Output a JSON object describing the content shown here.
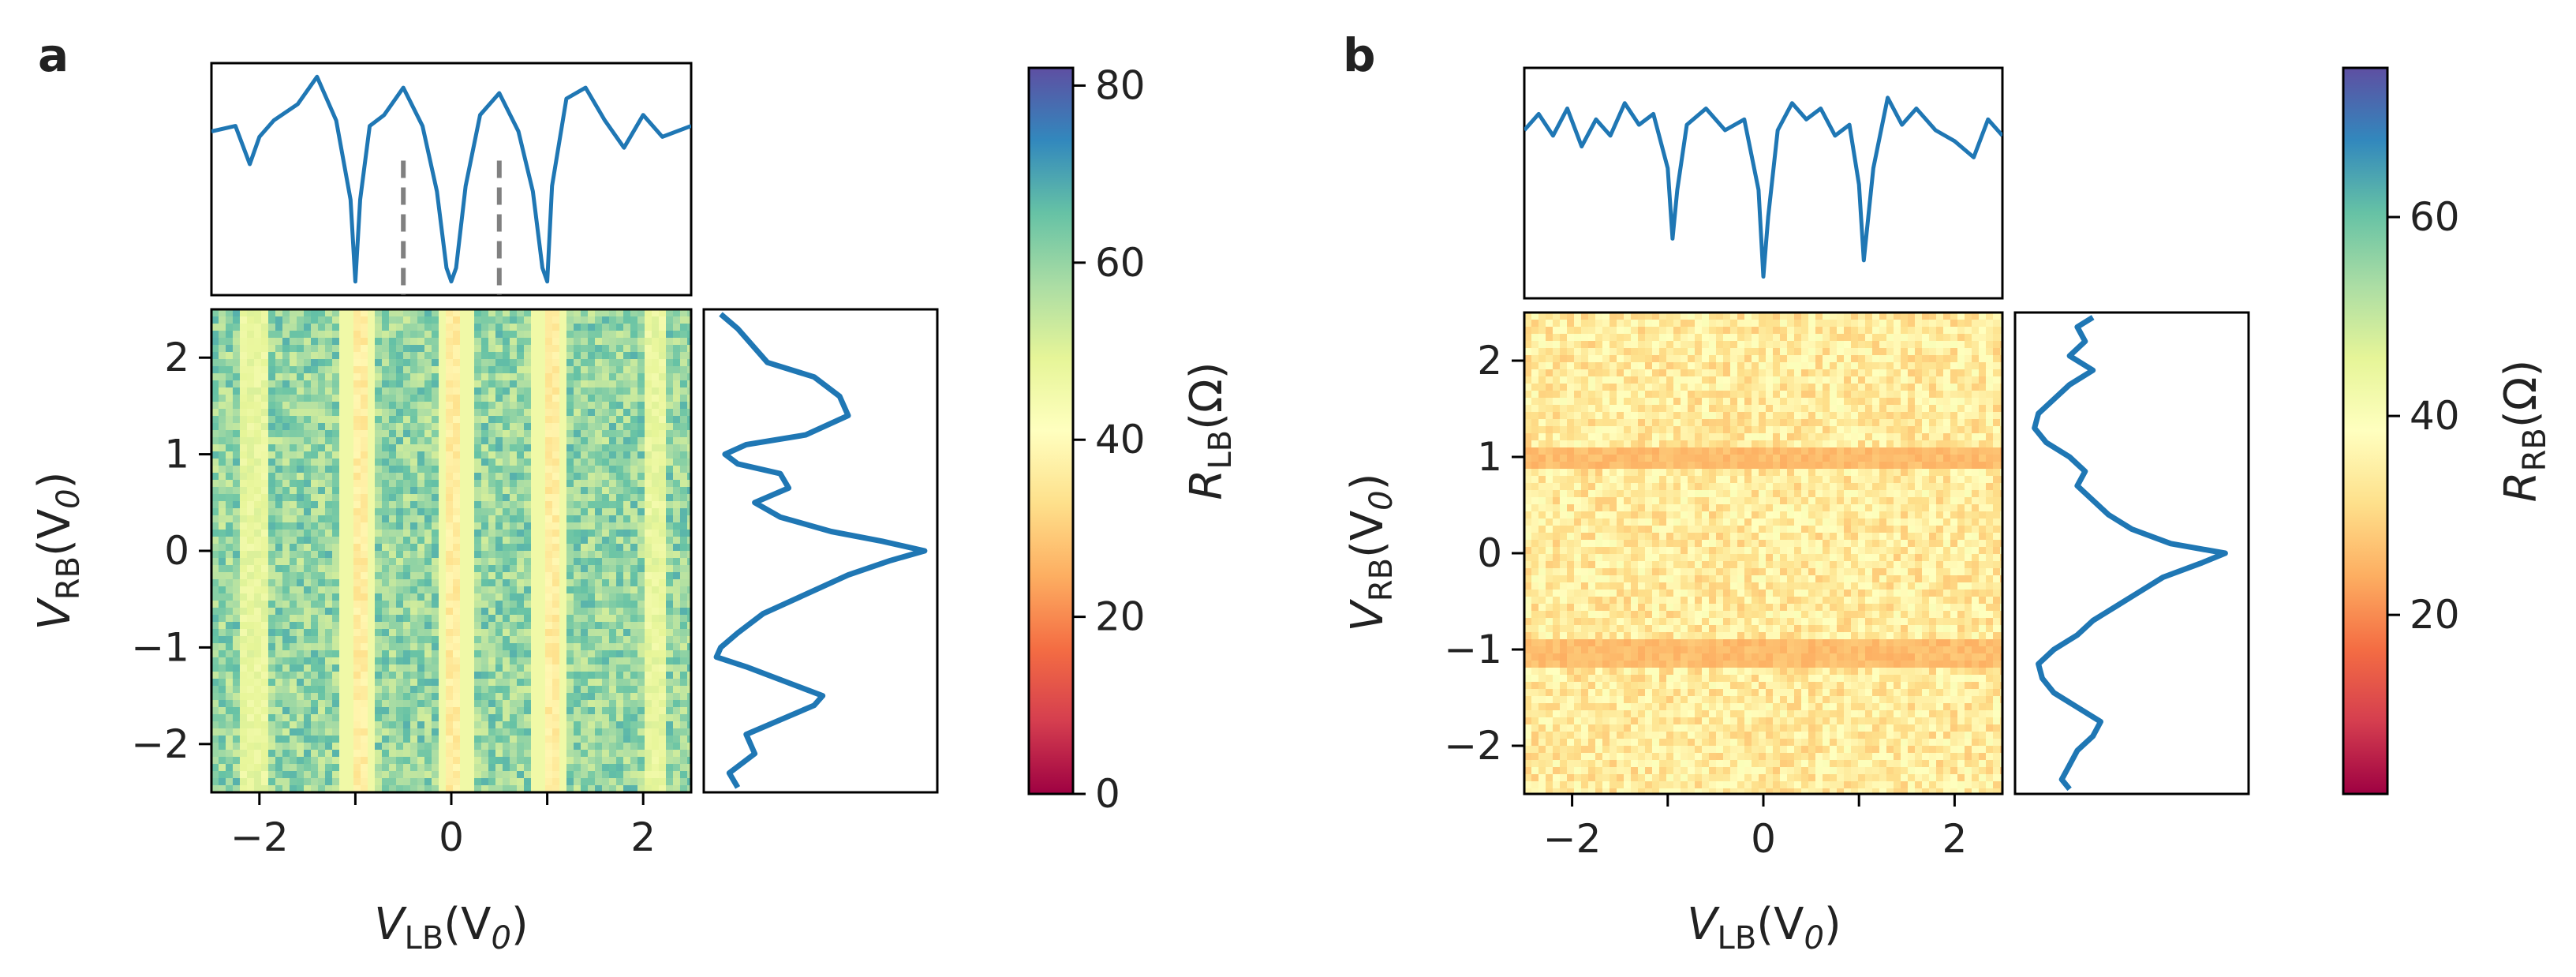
{
  "chart_data": [
    {
      "panel": "a",
      "type": "heatmap",
      "xlabel": {
        "main": "V",
        "sub": "LB",
        "unit": "(V",
        "unit_sub": "0",
        "close": ")"
      },
      "ylabel": {
        "main": "V",
        "sub": "RB",
        "unit": "(V",
        "unit_sub": "0",
        "close": ")"
      },
      "xlim": [
        -2.5,
        2.5
      ],
      "ylim": [
        -2.5,
        2.5
      ],
      "xticks": [
        -2,
        0,
        2
      ],
      "xtick_labels": [
        "−2",
        "0",
        "2"
      ],
      "minor_xticks": [
        -1,
        1
      ],
      "yticks": [
        -2,
        -1,
        0,
        1,
        2
      ],
      "ytick_labels": [
        "−2",
        "−1",
        "0",
        "1",
        "2"
      ],
      "colorbar": {
        "label": {
          "main": "R",
          "sub": "LB",
          "unit": "(Ω)"
        },
        "range": [
          0,
          82
        ],
        "ticks": [
          0,
          20,
          40,
          60,
          80
        ],
        "tick_labels": [
          "0",
          "20",
          "40",
          "60",
          "80"
        ],
        "colormap": "Spectral"
      },
      "heatmap": {
        "base_value": 60,
        "noise": 8,
        "vertical_dips_at_x": [
          -1,
          0,
          1
        ],
        "dip_value": 36,
        "secondary_dips_at_x": [
          -2.1,
          2.1
        ],
        "secondary_dip_value": 48,
        "horizontal_modulation": false
      },
      "top_profile": {
        "x": [
          -2.5,
          -2.25,
          -2.1,
          -2.0,
          -1.85,
          -1.6,
          -1.4,
          -1.2,
          -1.05,
          -1.0,
          -0.95,
          -0.85,
          -0.7,
          -0.5,
          -0.3,
          -0.15,
          -0.05,
          0.0,
          0.05,
          0.15,
          0.3,
          0.5,
          0.7,
          0.85,
          0.95,
          1.0,
          1.05,
          1.2,
          1.4,
          1.6,
          1.8,
          2.0,
          2.2,
          2.5
        ],
        "y": [
          60,
          62,
          48,
          58,
          64,
          70,
          80,
          64,
          35,
          5,
          35,
          62,
          66,
          76,
          62,
          38,
          10,
          5,
          10,
          40,
          66,
          74,
          60,
          38,
          10,
          5,
          40,
          72,
          76,
          64,
          54,
          66,
          58,
          62
        ],
        "ylim": [
          0,
          85
        ],
        "dashed_markers_x": [
          -0.5,
          0.5
        ],
        "marker_color": "#808080"
      },
      "side_profile": {
        "y": [
          2.45,
          2.3,
          2.1,
          1.95,
          1.8,
          1.6,
          1.4,
          1.2,
          1.1,
          1.0,
          0.9,
          0.8,
          0.65,
          0.5,
          0.35,
          0.2,
          0.1,
          0.0,
          -0.1,
          -0.25,
          -0.45,
          -0.65,
          -0.85,
          -1.0,
          -1.1,
          -1.2,
          -1.4,
          -1.5,
          -1.6,
          -1.75,
          -1.9,
          -2.1,
          -2.3,
          -2.45
        ],
        "r": [
          34,
          38,
          42,
          45,
          56,
          62,
          64,
          54,
          40,
          35,
          38,
          48,
          50,
          42,
          48,
          60,
          72,
          82,
          74,
          64,
          54,
          44,
          38,
          34,
          33,
          40,
          52,
          58,
          56,
          48,
          40,
          42,
          36,
          38
        ],
        "xlim": [
          30,
          85
        ]
      },
      "line_color": "#1f77b4"
    },
    {
      "panel": "b",
      "type": "heatmap",
      "xlabel": {
        "main": "V",
        "sub": "LB",
        "unit": "(V",
        "unit_sub": "0",
        "close": ")"
      },
      "ylabel": {
        "main": "V",
        "sub": "RB",
        "unit": "(V",
        "unit_sub": "0",
        "close": ")"
      },
      "xlim": [
        -2.5,
        2.5
      ],
      "ylim": [
        -2.5,
        2.5
      ],
      "xticks": [
        -2,
        0,
        2
      ],
      "xtick_labels": [
        "−2",
        "0",
        "2"
      ],
      "minor_xticks": [
        -1,
        1
      ],
      "yticks": [
        -2,
        -1,
        0,
        1,
        2
      ],
      "ytick_labels": [
        "−2",
        "−1",
        "0",
        "1",
        "2"
      ],
      "colorbar": {
        "label": {
          "main": "R",
          "sub": "RB",
          "unit": "(Ω)"
        },
        "range": [
          2,
          75
        ],
        "ticks": [
          20,
          40,
          60
        ],
        "tick_labels": [
          "20",
          "40",
          "60"
        ],
        "colormap": "Spectral"
      },
      "heatmap": {
        "base_value": 34,
        "noise": 6,
        "horizontal_dips_at_y": [
          -1,
          1
        ],
        "dip_value": 26,
        "vertical_modulation": false
      },
      "top_profile": {
        "x": [
          -2.5,
          -2.35,
          -2.2,
          -2.05,
          -1.9,
          -1.75,
          -1.6,
          -1.45,
          -1.3,
          -1.15,
          -1.0,
          -0.95,
          -0.9,
          -0.8,
          -0.6,
          -0.4,
          -0.2,
          -0.05,
          0.0,
          0.05,
          0.15,
          0.3,
          0.45,
          0.6,
          0.75,
          0.9,
          1.0,
          1.05,
          1.15,
          1.3,
          1.45,
          1.6,
          1.8,
          2.0,
          2.2,
          2.35,
          2.5
        ],
        "y": [
          62,
          68,
          60,
          70,
          56,
          66,
          60,
          72,
          64,
          68,
          48,
          22,
          40,
          64,
          70,
          62,
          66,
          40,
          8,
          30,
          62,
          72,
          66,
          70,
          60,
          64,
          42,
          14,
          48,
          74,
          64,
          70,
          62,
          58,
          52,
          66,
          60
        ],
        "ylim": [
          0,
          85
        ]
      },
      "side_profile": {
        "y": [
          2.45,
          2.35,
          2.2,
          2.05,
          1.9,
          1.75,
          1.6,
          1.45,
          1.3,
          1.15,
          1.0,
          0.85,
          0.7,
          0.55,
          0.4,
          0.25,
          0.1,
          0.0,
          -0.1,
          -0.25,
          -0.4,
          -0.55,
          -0.7,
          -0.85,
          -1.0,
          -1.15,
          -1.3,
          -1.45,
          -1.6,
          -1.75,
          -1.9,
          -2.05,
          -2.2,
          -2.35,
          -2.45
        ],
        "r": [
          40,
          36,
          38,
          34,
          40,
          34,
          30,
          26,
          25,
          28,
          34,
          38,
          36,
          40,
          44,
          50,
          60,
          74,
          68,
          58,
          52,
          46,
          40,
          36,
          30,
          26,
          27,
          30,
          36,
          42,
          40,
          36,
          34,
          32,
          34
        ],
        "xlim": [
          20,
          80
        ]
      },
      "line_color": "#1f77b4"
    }
  ]
}
